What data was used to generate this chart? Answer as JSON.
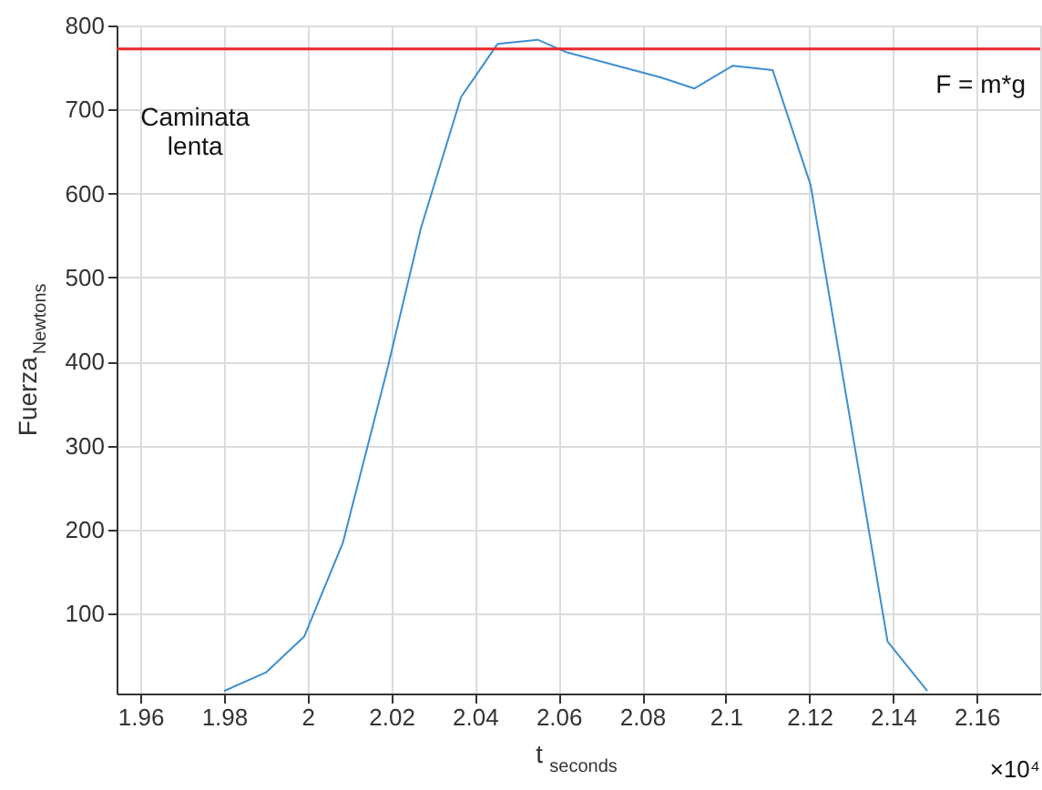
{
  "chart_data": {
    "type": "line",
    "xlabel": "t$_{seconds}$",
    "ylabel": "Fuerza$_{Newtons}$",
    "x": [
      1.98,
      1.99,
      1.9992,
      2.0084,
      2.019,
      2.0271,
      2.0367,
      2.0454,
      2.055,
      2.062,
      2.0846,
      2.0925,
      2.1016,
      2.1112,
      2.1203,
      2.1387,
      2.1482
    ],
    "series": [
      {
        "color": "#3d8fd1",
        "values": [
          8,
          30,
          73,
          184,
          390,
          559,
          715,
          778,
          783,
          768,
          738,
          725,
          752,
          747,
          610,
          67,
          8
        ]
      }
    ],
    "xlim": [
      1.9543,
      2.1752
    ],
    "xticks": [
      1.96,
      1.98,
      2,
      2.02,
      2.04,
      2.06,
      2.08,
      2.1,
      2.12,
      2.14,
      2.16
    ],
    "ylim": [
      5,
      800
    ],
    "yticks": [
      100,
      200,
      300,
      400,
      500,
      600,
      700,
      800
    ],
    "ref_lines": [
      {
        "axis": "y",
        "value": 772,
        "color": "#e8262a"
      }
    ],
    "annotations": [
      "Caminata\nlenta",
      "F = m*g",
      "×10⁴"
    ],
    "grid": true,
    "line_style": "solid",
    "marker": "none"
  }
}
